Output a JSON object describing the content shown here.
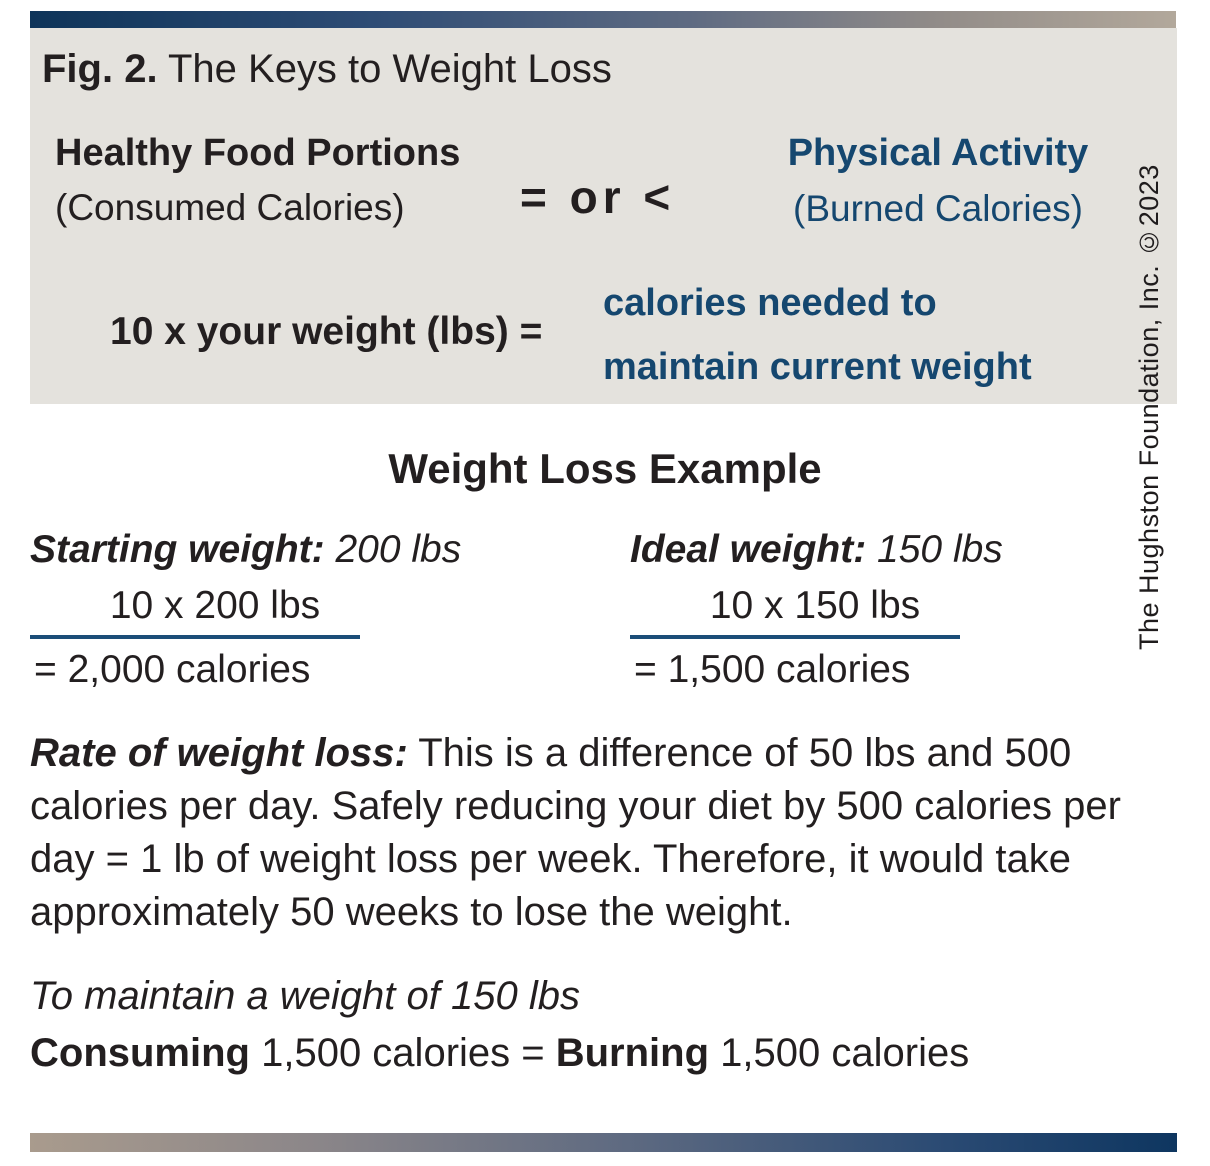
{
  "figure": {
    "label": "Fig. 2.",
    "title": " The Keys to Weight Loss"
  },
  "equation": {
    "left": {
      "title": "Healthy Food Portions",
      "subtitle": "(Consumed Calories)"
    },
    "operator": "= or <",
    "right": {
      "title": "Physical Activity",
      "subtitle": "(Burned Calories)"
    }
  },
  "formula": {
    "input": "10 x your weight (lbs) =",
    "output_line1": "calories needed to",
    "output_line2": "maintain current weight"
  },
  "credit": "The Hughston Foundation, Inc. ©2023",
  "example": {
    "heading": "Weight Loss Example",
    "columns": [
      {
        "label": "Starting weight:",
        "value": " 200 lbs",
        "calc": "10 x 200 lbs",
        "result": "= 2,000 calories"
      },
      {
        "label": "Ideal weight:",
        "value": " 150 lbs",
        "calc": "10 x 150 lbs",
        "result": "= 1,500 calories"
      }
    ]
  },
  "rate": {
    "label": "Rate of weight loss:",
    "text": " This is a difference of 50 lbs and 500 calories per day. Safely reducing your diet by 500 calories per day = 1 lb of weight loss per week. Therefore, it would take approximately 50 weeks to lose the weight."
  },
  "maintain": {
    "intro": "To maintain a weight of 150 lbs",
    "consuming_label": "Consuming",
    "mid": " 1,500 calories = ",
    "burning_label": "Burning",
    "end": " 1,500 calories"
  },
  "colors": {
    "navy_text": "#15476f",
    "rule_navy": "#1b4d78",
    "panel_bg": "#e4e2dd",
    "body_text": "#231f20",
    "bar_navy": "#0e3459",
    "bar_tan": "#b2a89b"
  }
}
